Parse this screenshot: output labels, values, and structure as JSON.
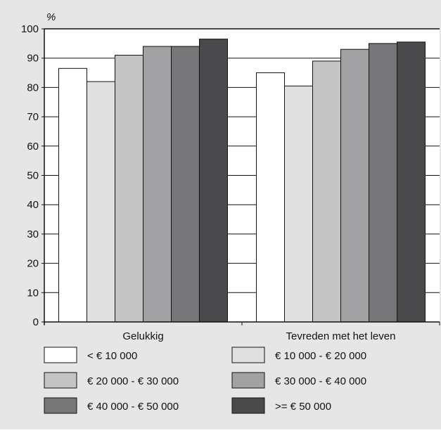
{
  "chart_data": {
    "type": "bar",
    "ylabel": "%",
    "ylim": [
      0,
      100
    ],
    "yticks": [
      0,
      10,
      20,
      30,
      40,
      50,
      60,
      70,
      80,
      90,
      100
    ],
    "grid": true,
    "categories": [
      "Gelukkig",
      "Tevreden met het leven"
    ],
    "series": [
      {
        "name": "< € 10 000",
        "color": "#ffffff",
        "values": [
          86.5,
          85
        ]
      },
      {
        "name": "€ 10 000 - € 20 000",
        "color": "#e0e0e0",
        "values": [
          82,
          80.5
        ]
      },
      {
        "name": "€ 20 000 - € 30 000",
        "color": "#c4c4c4",
        "values": [
          91,
          89
        ]
      },
      {
        "name": "€ 30 000 - € 40 000",
        "color": "#a2a2a4",
        "values": [
          94,
          93
        ]
      },
      {
        "name": "€ 40 000 - € 50 000",
        "color": "#77777a",
        "values": [
          94,
          95
        ]
      },
      {
        "name": ">= € 50 000",
        "color": "#4a4a4d",
        "values": [
          96.5,
          95.5
        ]
      }
    ],
    "legend_position": "bottom"
  }
}
